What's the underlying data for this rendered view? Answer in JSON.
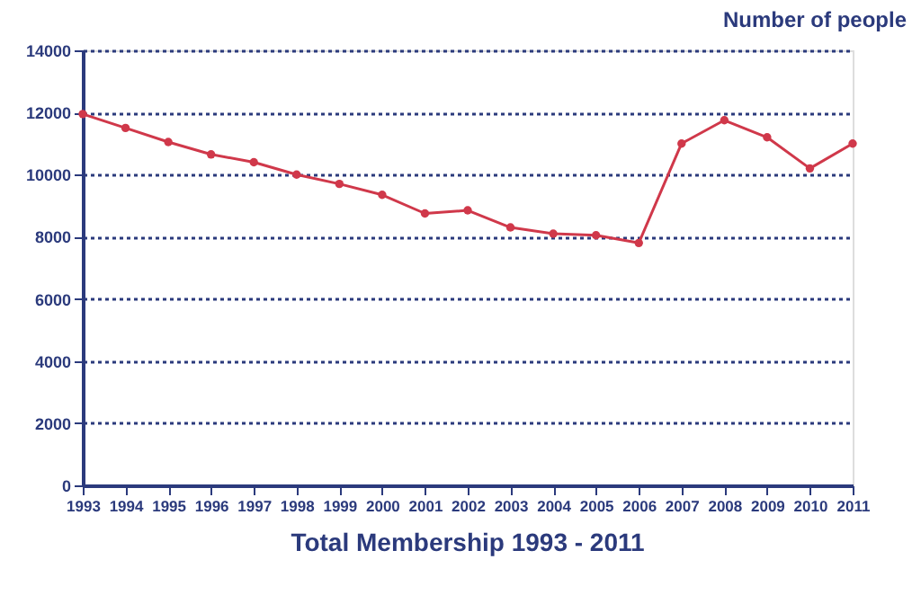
{
  "chart_data": {
    "type": "line",
    "title": "Total Membership 1993 - 2011",
    "ylabel": "Number of people",
    "categories": [
      "1993",
      "1994",
      "1995",
      "1996",
      "1997",
      "1998",
      "1999",
      "2000",
      "2001",
      "2002",
      "2003",
      "2004",
      "2005",
      "2006",
      "2007",
      "2008",
      "2009",
      "2010",
      "2011"
    ],
    "series": [
      {
        "color": "#d0384a",
        "values": [
          11950,
          11500,
          11050,
          10650,
          10400,
          10000,
          9700,
          9350,
          8750,
          8850,
          8300,
          8100,
          8050,
          7800,
          11000,
          11750,
          11200,
          10200,
          11000
        ]
      }
    ],
    "ylim": [
      0,
      14000
    ],
    "yticks": [
      0,
      2000,
      4000,
      6000,
      8000,
      10000,
      12000,
      14000
    ],
    "grid": "y",
    "marker": "circle",
    "line_style": "solid",
    "legend": false
  }
}
